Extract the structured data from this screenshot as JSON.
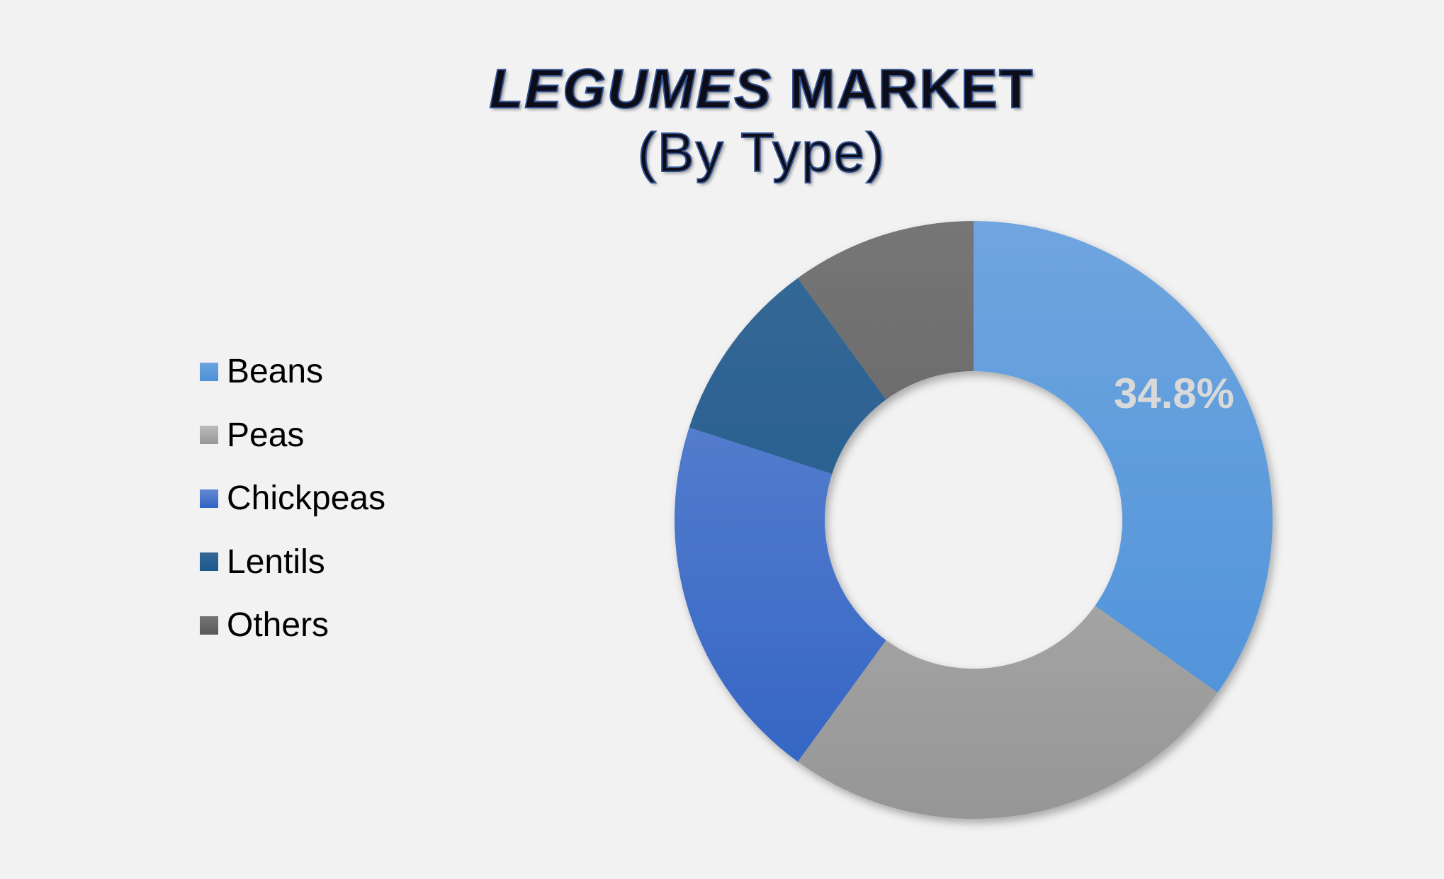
{
  "chart_data": {
    "type": "pie",
    "title_italic": "LEGUMES",
    "title_rest": " MARKET",
    "subtitle": "(By Type)",
    "categories": [
      "Beans",
      "Peas",
      "Chickpeas",
      "Lentils",
      "Others"
    ],
    "values": [
      34.8,
      25.2,
      20.0,
      10.0,
      10.0
    ],
    "data_labels": [
      "34.8%",
      "",
      "",
      "",
      ""
    ],
    "colors": [
      "#4a90d9",
      "#a0a0a0",
      "#3b6cc8",
      "#1f5a8f",
      "#5f5f5f"
    ],
    "colors_light": [
      "#6fa5df",
      "#bcbcbc",
      "#6588d2",
      "#356996",
      "#767676"
    ],
    "colors_dark": [
      "#4a90d9",
      "#969696",
      "#3063c3",
      "#1d578c",
      "#575757"
    ],
    "label_color": "#d9d9d9",
    "legend_position": "left",
    "donut": true,
    "start_angle_deg": 0
  }
}
